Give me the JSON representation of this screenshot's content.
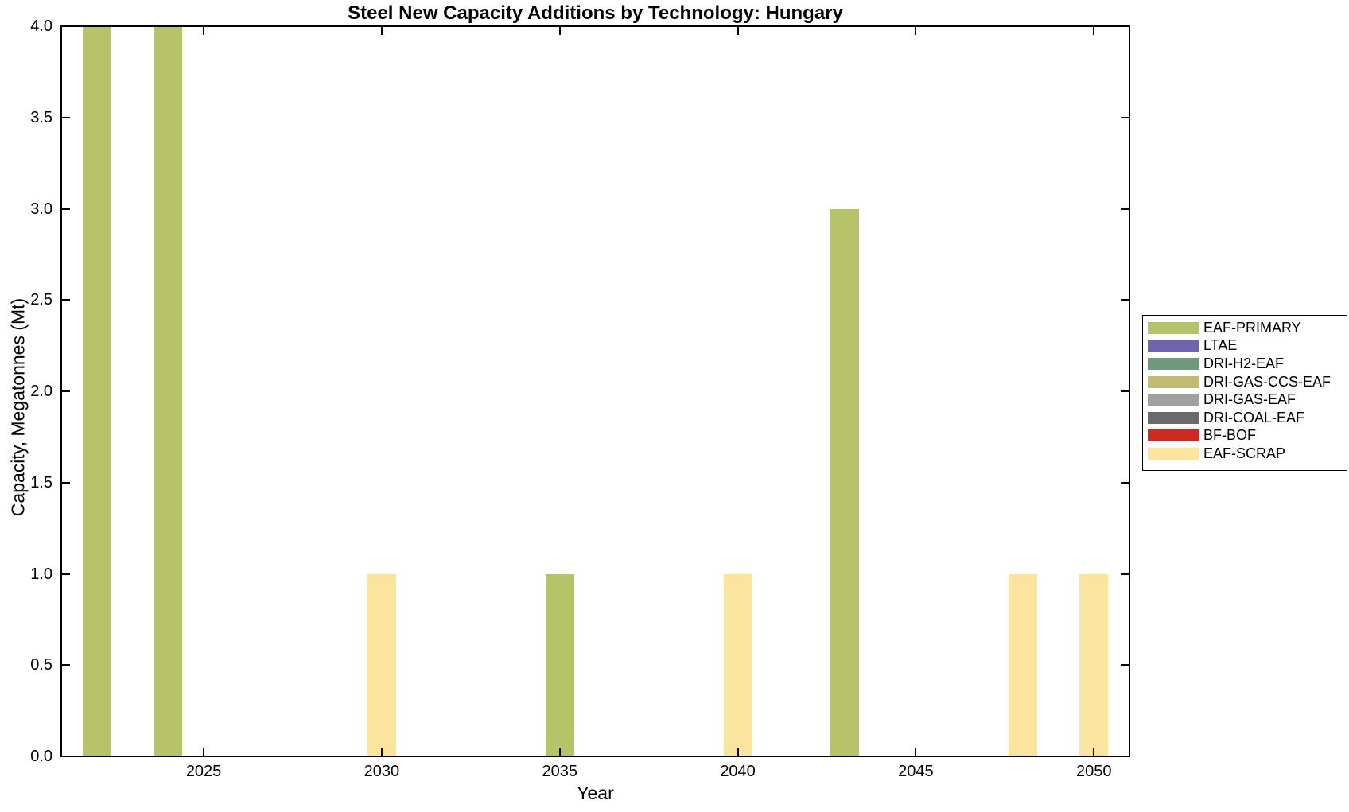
{
  "figure": {
    "background": "#ffffff",
    "axes_color": "#000000"
  },
  "chart_data": {
    "type": "bar",
    "title": "Steel New Capacity Additions by Technology: Hungary",
    "xlabel": "Year",
    "ylabel": "Capacity, Megatonnes (Mt)",
    "xlim": [
      2021,
      2051
    ],
    "ylim": [
      0,
      4
    ],
    "xticks": [
      2025,
      2030,
      2035,
      2040,
      2045,
      2050
    ],
    "xtick_labels": [
      "2025",
      "2030",
      "2035",
      "2040",
      "2045",
      "2050"
    ],
    "yticks": [
      0,
      0.5,
      1,
      1.5,
      2,
      2.5,
      3,
      3.5,
      4
    ],
    "ytick_labels": [
      "0.0",
      "0.5",
      "1.0",
      "1.5",
      "2.0",
      "2.5",
      "3.0",
      "3.5",
      "4.0"
    ],
    "bar_width_years": 0.8,
    "grid": false,
    "legend_position": "outside-right",
    "series": [
      {
        "name": "EAF-PRIMARY",
        "color": "#b7c368",
        "points": [
          {
            "year": 2022,
            "value": 4.0
          },
          {
            "year": 2024,
            "value": 4.0
          },
          {
            "year": 2035,
            "value": 1.0
          },
          {
            "year": 2043,
            "value": 3.0
          }
        ]
      },
      {
        "name": "LTAE",
        "color": "#7164ae",
        "points": []
      },
      {
        "name": "DRI-H2-EAF",
        "color": "#6f997b",
        "points": []
      },
      {
        "name": "DRI-GAS-CCS-EAF",
        "color": "#c0ba72",
        "points": []
      },
      {
        "name": "DRI-GAS-EAF",
        "color": "#a0a0a0",
        "points": []
      },
      {
        "name": "DRI-COAL-EAF",
        "color": "#6a6a6a",
        "points": []
      },
      {
        "name": "BF-BOF",
        "color": "#cf291f",
        "points": []
      },
      {
        "name": "EAF-SCRAP",
        "color": "#fbe59e",
        "points": [
          {
            "year": 2030,
            "value": 1.0
          },
          {
            "year": 2040,
            "value": 1.0
          },
          {
            "year": 2048,
            "value": 1.0
          },
          {
            "year": 2050,
            "value": 1.0
          }
        ]
      }
    ]
  }
}
